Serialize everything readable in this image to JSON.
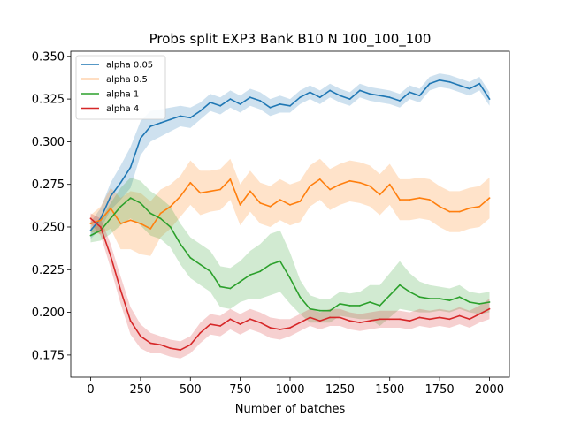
{
  "chart_data": {
    "type": "line",
    "title": "Probs split EXP3 Bank B10 N 100_100_100",
    "xlabel": "Number of batches",
    "ylabel": "",
    "xlim": [
      -100,
      2100
    ],
    "ylim": [
      0.162,
      0.353
    ],
    "x_ticks": [
      0,
      250,
      500,
      750,
      1000,
      1250,
      1500,
      1750,
      2000
    ],
    "x_tick_labels": [
      "0",
      "250",
      "500",
      "750",
      "1000",
      "1250",
      "1500",
      "1750",
      "2000"
    ],
    "y_ticks": [
      0.175,
      0.2,
      0.225,
      0.25,
      0.275,
      0.3,
      0.325,
      0.35
    ],
    "y_tick_labels": [
      "0.175",
      "0.200",
      "0.225",
      "0.250",
      "0.275",
      "0.300",
      "0.325",
      "0.350"
    ],
    "grid": false,
    "legend_position": "upper left",
    "x": [
      0,
      50,
      100,
      150,
      200,
      250,
      300,
      350,
      400,
      450,
      500,
      550,
      600,
      650,
      700,
      750,
      800,
      850,
      900,
      950,
      1000,
      1050,
      1100,
      1150,
      1200,
      1250,
      1300,
      1350,
      1400,
      1450,
      1500,
      1550,
      1600,
      1650,
      1700,
      1750,
      1800,
      1850,
      1900,
      1950,
      2000
    ],
    "series": [
      {
        "name": "alpha 0.05",
        "color": "#1f77b4",
        "values": [
          0.248,
          0.255,
          0.268,
          0.276,
          0.285,
          0.302,
          0.309,
          0.311,
          0.313,
          0.315,
          0.314,
          0.318,
          0.323,
          0.321,
          0.325,
          0.322,
          0.326,
          0.324,
          0.32,
          0.322,
          0.321,
          0.326,
          0.329,
          0.326,
          0.33,
          0.327,
          0.325,
          0.33,
          0.328,
          0.327,
          0.326,
          0.324,
          0.329,
          0.327,
          0.334,
          0.336,
          0.335,
          0.333,
          0.331,
          0.334,
          0.325
        ],
        "band": [
          0.005,
          0.006,
          0.008,
          0.01,
          0.012,
          0.01,
          0.009,
          0.008,
          0.007,
          0.006,
          0.006,
          0.005,
          0.005,
          0.005,
          0.005,
          0.005,
          0.005,
          0.005,
          0.005,
          0.005,
          0.004,
          0.004,
          0.004,
          0.004,
          0.004,
          0.004,
          0.004,
          0.004,
          0.004,
          0.004,
          0.004,
          0.004,
          0.004,
          0.004,
          0.004,
          0.004,
          0.004,
          0.004,
          0.004,
          0.004,
          0.004
        ]
      },
      {
        "name": "alpha 0.5",
        "color": "#ff7f0e",
        "values": [
          0.252,
          0.254,
          0.261,
          0.252,
          0.254,
          0.252,
          0.249,
          0.258,
          0.262,
          0.268,
          0.276,
          0.27,
          0.271,
          0.272,
          0.278,
          0.263,
          0.271,
          0.264,
          0.262,
          0.266,
          0.263,
          0.265,
          0.274,
          0.278,
          0.272,
          0.275,
          0.277,
          0.276,
          0.274,
          0.269,
          0.275,
          0.266,
          0.266,
          0.267,
          0.266,
          0.262,
          0.259,
          0.259,
          0.261,
          0.262,
          0.267
        ],
        "band": [
          0.005,
          0.008,
          0.012,
          0.015,
          0.017,
          0.018,
          0.016,
          0.014,
          0.013,
          0.012,
          0.013,
          0.013,
          0.012,
          0.012,
          0.012,
          0.012,
          0.012,
          0.012,
          0.012,
          0.012,
          0.012,
          0.012,
          0.012,
          0.012,
          0.012,
          0.012,
          0.012,
          0.012,
          0.012,
          0.012,
          0.012,
          0.012,
          0.012,
          0.012,
          0.012,
          0.012,
          0.012,
          0.012,
          0.012,
          0.012,
          0.012
        ]
      },
      {
        "name": "alpha 1",
        "color": "#2ca02c",
        "values": [
          0.245,
          0.248,
          0.255,
          0.262,
          0.267,
          0.264,
          0.258,
          0.255,
          0.25,
          0.24,
          0.232,
          0.228,
          0.224,
          0.215,
          0.214,
          0.218,
          0.222,
          0.224,
          0.228,
          0.23,
          0.22,
          0.209,
          0.202,
          0.201,
          0.201,
          0.205,
          0.204,
          0.204,
          0.206,
          0.204,
          0.21,
          0.216,
          0.212,
          0.209,
          0.208,
          0.208,
          0.207,
          0.209,
          0.206,
          0.205,
          0.206
        ],
        "band": [
          0.004,
          0.006,
          0.009,
          0.011,
          0.012,
          0.013,
          0.013,
          0.012,
          0.012,
          0.012,
          0.012,
          0.012,
          0.012,
          0.012,
          0.012,
          0.012,
          0.014,
          0.016,
          0.018,
          0.018,
          0.015,
          0.01,
          0.008,
          0.007,
          0.007,
          0.007,
          0.007,
          0.008,
          0.01,
          0.012,
          0.013,
          0.014,
          0.011,
          0.009,
          0.008,
          0.007,
          0.007,
          0.007,
          0.006,
          0.006,
          0.006
        ]
      },
      {
        "name": "alpha 4",
        "color": "#d62728",
        "values": [
          0.255,
          0.25,
          0.233,
          0.213,
          0.195,
          0.186,
          0.182,
          0.181,
          0.179,
          0.178,
          0.181,
          0.188,
          0.193,
          0.192,
          0.196,
          0.193,
          0.196,
          0.194,
          0.191,
          0.19,
          0.191,
          0.194,
          0.197,
          0.195,
          0.197,
          0.197,
          0.195,
          0.194,
          0.195,
          0.196,
          0.196,
          0.196,
          0.195,
          0.197,
          0.196,
          0.197,
          0.196,
          0.198,
          0.196,
          0.199,
          0.202
        ],
        "band": [
          0.003,
          0.005,
          0.007,
          0.008,
          0.008,
          0.007,
          0.006,
          0.005,
          0.005,
          0.005,
          0.005,
          0.006,
          0.006,
          0.006,
          0.006,
          0.006,
          0.006,
          0.006,
          0.006,
          0.006,
          0.005,
          0.005,
          0.005,
          0.005,
          0.005,
          0.005,
          0.005,
          0.005,
          0.005,
          0.005,
          0.005,
          0.005,
          0.005,
          0.005,
          0.005,
          0.005,
          0.005,
          0.005,
          0.005,
          0.005,
          0.006
        ]
      }
    ]
  }
}
